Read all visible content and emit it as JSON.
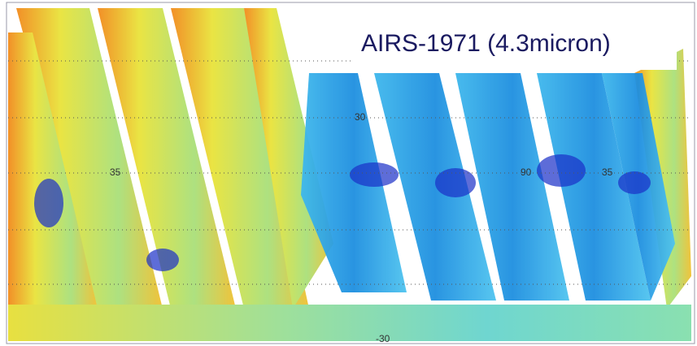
{
  "title": "AIRS-1971 (4.3micron)",
  "map_labels": [
    "30",
    "35",
    "90",
    "35",
    "-30"
  ]
}
